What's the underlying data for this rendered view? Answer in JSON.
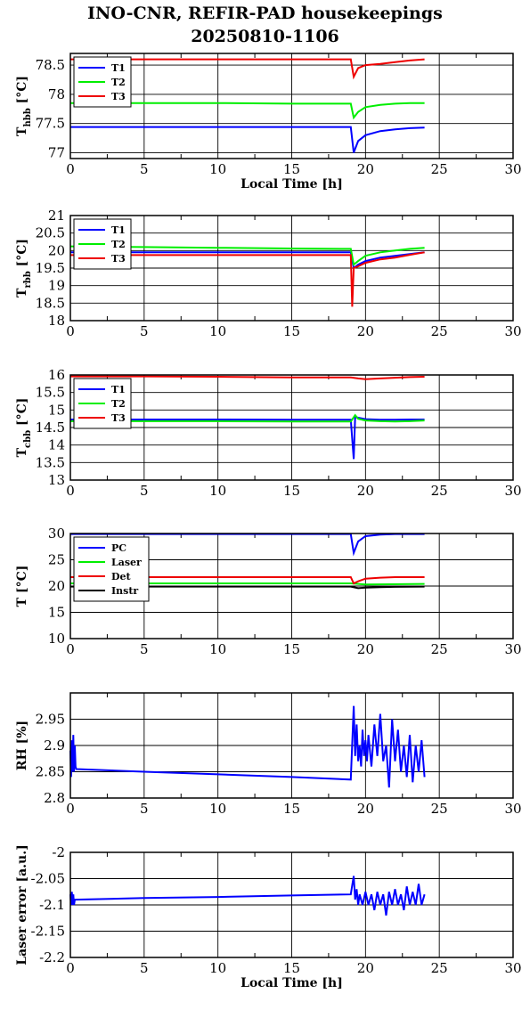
{
  "title_line1": "INO-CNR, REFIR-PAD housekeepings",
  "title_line2": "20250810-1106",
  "colors": {
    "blue": "#0000ff",
    "green": "#00ee00",
    "red": "#ee0000",
    "black": "#000000"
  },
  "chart_data": [
    {
      "type": "line",
      "ylabel_main": "T",
      "ylabel_sub": "hbb",
      "ylabel_unit": " [°C]",
      "xlabel": "Local Time [h]",
      "xlim": [
        0,
        30
      ],
      "ylim": [
        76.9,
        78.7
      ],
      "xticks": [
        0,
        5,
        10,
        15,
        20,
        25,
        30
      ],
      "yticks": [
        77,
        77.5,
        78,
        78.5
      ],
      "series": [
        {
          "name": "T1",
          "color": "#0000ff",
          "x": [
            0,
            5,
            10,
            15,
            19.0,
            19.2,
            19.5,
            20.0,
            21.0,
            22.0,
            23.0,
            24.0
          ],
          "y": [
            77.44,
            77.44,
            77.44,
            77.44,
            77.44,
            77.0,
            77.2,
            77.3,
            77.37,
            77.4,
            77.42,
            77.43
          ]
        },
        {
          "name": "T2",
          "color": "#00ee00",
          "x": [
            0,
            5,
            10,
            15,
            19.0,
            19.2,
            19.5,
            20.0,
            21.0,
            22.0,
            23.0,
            24.0
          ],
          "y": [
            77.85,
            77.85,
            77.85,
            77.84,
            77.84,
            77.6,
            77.7,
            77.78,
            77.82,
            77.84,
            77.85,
            77.85
          ]
        },
        {
          "name": "T3",
          "color": "#ee0000",
          "x": [
            0,
            5,
            10,
            15,
            19.0,
            19.2,
            19.5,
            20.0,
            21.0,
            22.0,
            23.0,
            24.0
          ],
          "y": [
            78.6,
            78.6,
            78.6,
            78.6,
            78.6,
            78.3,
            78.45,
            78.5,
            78.52,
            78.55,
            78.58,
            78.6
          ]
        }
      ],
      "legend": "upper-left"
    },
    {
      "type": "line",
      "ylabel_main": "T",
      "ylabel_sub": "rbb",
      "ylabel_unit": " [°C]",
      "xlabel": "",
      "xlim": [
        0,
        30
      ],
      "ylim": [
        18,
        21
      ],
      "xticks": [
        0,
        5,
        10,
        15,
        20,
        25,
        30
      ],
      "yticks": [
        18,
        18.5,
        19,
        19.5,
        20,
        20.5,
        21
      ],
      "series": [
        {
          "name": "T1",
          "color": "#0000ff",
          "x": [
            0,
            5,
            10,
            15,
            19.0,
            19.2,
            19.5,
            20.0,
            21.0,
            22.0,
            23.0,
            24.0
          ],
          "y": [
            19.95,
            19.95,
            19.95,
            19.95,
            19.95,
            19.5,
            19.6,
            19.7,
            19.8,
            19.85,
            19.9,
            19.95
          ]
        },
        {
          "name": "T2",
          "color": "#00ee00",
          "x": [
            0,
            5,
            10,
            15,
            19.0,
            19.2,
            19.5,
            20.0,
            21.0,
            22.0,
            23.0,
            24.0
          ],
          "y": [
            20.12,
            20.1,
            20.08,
            20.06,
            20.05,
            19.6,
            19.7,
            19.85,
            19.95,
            20.0,
            20.05,
            20.08
          ]
        },
        {
          "name": "T3",
          "color": "#ee0000",
          "x": [
            0,
            5,
            10,
            15,
            19.0,
            19.1,
            19.2,
            19.5,
            20.0,
            21.0,
            22.0,
            23.0,
            24.0
          ],
          "y": [
            19.87,
            19.87,
            19.87,
            19.87,
            19.87,
            18.4,
            19.5,
            19.55,
            19.65,
            19.75,
            19.8,
            19.88,
            19.95
          ]
        }
      ],
      "legend": "upper-left"
    },
    {
      "type": "line",
      "ylabel_main": "T",
      "ylabel_sub": "cbb",
      "ylabel_unit": " [°C]",
      "xlabel": "",
      "xlim": [
        0,
        30
      ],
      "ylim": [
        13,
        16
      ],
      "xticks": [
        0,
        5,
        10,
        15,
        20,
        25,
        30
      ],
      "yticks": [
        13,
        13.5,
        14,
        14.5,
        15,
        15.5,
        16
      ],
      "series": [
        {
          "name": "T1",
          "color": "#0000ff",
          "x": [
            0,
            5,
            10,
            15,
            19.0,
            19.2,
            19.3,
            19.5,
            20.0,
            21.0,
            22.0,
            23.0,
            24.0
          ],
          "y": [
            14.73,
            14.73,
            14.73,
            14.72,
            14.72,
            13.6,
            14.8,
            14.78,
            14.74,
            14.72,
            14.72,
            14.73,
            14.73
          ]
        },
        {
          "name": "T2",
          "color": "#00ee00",
          "x": [
            0,
            5,
            10,
            15,
            19.0,
            19.3,
            19.5,
            20.0,
            21.0,
            22.0,
            23.0,
            24.0
          ],
          "y": [
            14.68,
            14.68,
            14.68,
            14.67,
            14.67,
            14.85,
            14.75,
            14.7,
            14.68,
            14.67,
            14.68,
            14.7
          ]
        },
        {
          "name": "T3",
          "color": "#ee0000",
          "x": [
            0,
            5,
            10,
            15,
            19.0,
            19.5,
            20.0,
            21.0,
            22.0,
            23.0,
            24.0
          ],
          "y": [
            15.96,
            15.96,
            15.95,
            15.93,
            15.93,
            15.9,
            15.88,
            15.9,
            15.92,
            15.94,
            15.95
          ]
        }
      ],
      "legend": "upper-left"
    },
    {
      "type": "line",
      "ylabel_main": "T",
      "ylabel_sub": "",
      "ylabel_unit": " [°C]",
      "xlabel": "",
      "xlim": [
        0,
        30
      ],
      "ylim": [
        10,
        30
      ],
      "xticks": [
        0,
        5,
        10,
        15,
        20,
        25,
        30
      ],
      "yticks": [
        10,
        15,
        20,
        25,
        30
      ],
      "series": [
        {
          "name": "PC",
          "color": "#0000ff",
          "x": [
            0,
            5,
            10,
            15,
            19.0,
            19.2,
            19.5,
            20.0,
            21.0,
            22.0,
            24.0
          ],
          "y": [
            29.9,
            29.9,
            29.9,
            29.9,
            29.9,
            26.3,
            28.5,
            29.5,
            29.8,
            29.9,
            29.9
          ]
        },
        {
          "name": "Laser",
          "color": "#00ee00",
          "x": [
            0,
            5,
            10,
            15,
            19.0,
            20.0,
            24.0
          ],
          "y": [
            20.5,
            20.5,
            20.5,
            20.5,
            20.5,
            20.3,
            20.4
          ]
        },
        {
          "name": "Det",
          "color": "#ee0000",
          "x": [
            0,
            5,
            10,
            15,
            19.0,
            19.2,
            19.5,
            20.0,
            21.0,
            22.0,
            24.0
          ],
          "y": [
            21.7,
            21.7,
            21.7,
            21.7,
            21.7,
            20.5,
            20.9,
            21.4,
            21.6,
            21.7,
            21.7
          ]
        },
        {
          "name": "Instr",
          "color": "#000000",
          "x": [
            0,
            5,
            10,
            15,
            19.0,
            19.5,
            20.0,
            21.0,
            22.0,
            24.0
          ],
          "y": [
            19.9,
            19.9,
            19.9,
            19.9,
            19.9,
            19.6,
            19.7,
            19.8,
            19.85,
            19.9
          ]
        }
      ],
      "legend": "upper-left"
    },
    {
      "type": "line",
      "ylabel_main": "RH [%]",
      "ylabel_sub": "",
      "ylabel_unit": "",
      "xlabel": "",
      "xlim": [
        0,
        30
      ],
      "ylim": [
        2.8,
        3.0
      ],
      "xticks": [
        0,
        5,
        10,
        15,
        20,
        25,
        30
      ],
      "yticks": [
        2.8,
        2.85,
        2.9,
        2.95
      ],
      "series": [
        {
          "name": "RH",
          "color": "#0000ff",
          "x": [
            0,
            0.05,
            0.1,
            0.15,
            0.2,
            0.25,
            0.3,
            0.35,
            0.4,
            5,
            10,
            15,
            19.0,
            19.2,
            19.3,
            19.4,
            19.5,
            19.6,
            19.7,
            19.8,
            19.9,
            20.0,
            20.1,
            20.2,
            20.4,
            20.6,
            20.8,
            21.0,
            21.2,
            21.4,
            21.6,
            21.8,
            22.0,
            22.2,
            22.4,
            22.6,
            22.8,
            23.0,
            23.2,
            23.4,
            23.6,
            23.8,
            24.0
          ],
          "y": [
            2.89,
            2.84,
            2.91,
            2.85,
            2.92,
            2.85,
            2.9,
            2.86,
            2.855,
            2.85,
            2.845,
            2.84,
            2.835,
            2.975,
            2.88,
            2.94,
            2.87,
            2.9,
            2.86,
            2.93,
            2.88,
            2.91,
            2.87,
            2.92,
            2.86,
            2.94,
            2.88,
            2.96,
            2.87,
            2.9,
            2.82,
            2.95,
            2.87,
            2.93,
            2.85,
            2.9,
            2.84,
            2.92,
            2.83,
            2.9,
            2.85,
            2.91,
            2.84
          ]
        }
      ],
      "legend": "none"
    },
    {
      "type": "line",
      "ylabel_main": "Laser error [a.u.]",
      "ylabel_sub": "",
      "ylabel_unit": "",
      "xlabel": "Local Time [h]",
      "xlim": [
        0,
        30
      ],
      "ylim": [
        -2.2,
        -2.0
      ],
      "xticks": [
        0,
        5,
        10,
        15,
        20,
        25,
        30
      ],
      "yticks": [
        -2.2,
        -2.15,
        -2.1,
        -2.05,
        -2.0
      ],
      "series": [
        {
          "name": "Laser error",
          "color": "#0000ff",
          "x": [
            0,
            0.05,
            0.1,
            0.15,
            0.2,
            0.25,
            0.3,
            5,
            10,
            15,
            19.0,
            19.2,
            19.3,
            19.4,
            19.5,
            19.6,
            19.8,
            20.0,
            20.2,
            20.4,
            20.6,
            20.8,
            21.0,
            21.2,
            21.4,
            21.6,
            21.8,
            22.0,
            22.2,
            22.4,
            22.6,
            22.8,
            23.0,
            23.2,
            23.4,
            23.6,
            23.8,
            24.0
          ],
          "y": [
            -2.08,
            -2.1,
            -2.075,
            -2.1,
            -2.08,
            -2.1,
            -2.09,
            -2.087,
            -2.085,
            -2.082,
            -2.08,
            -2.045,
            -2.09,
            -2.07,
            -2.1,
            -2.08,
            -2.1,
            -2.075,
            -2.1,
            -2.08,
            -2.11,
            -2.075,
            -2.1,
            -2.08,
            -2.12,
            -2.075,
            -2.1,
            -2.07,
            -2.1,
            -2.08,
            -2.11,
            -2.065,
            -2.1,
            -2.075,
            -2.1,
            -2.06,
            -2.1,
            -2.08
          ]
        }
      ],
      "legend": "none"
    }
  ]
}
